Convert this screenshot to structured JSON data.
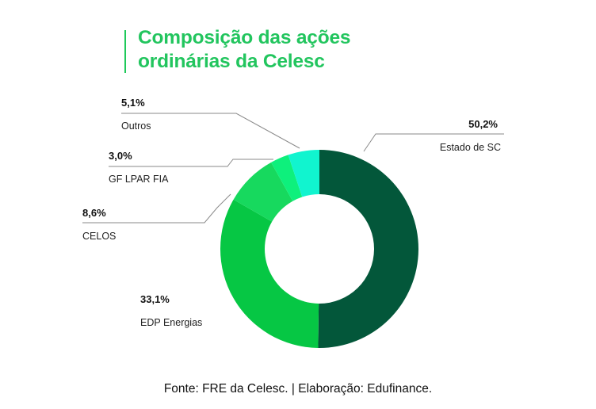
{
  "title": "Composição das ações ordinárias da Celesc",
  "source": "Fonte: FRE da Celesc. | Elaboração: Edufinance.",
  "colors": {
    "title": "#22c55e",
    "accent_bar": "#1fc95a"
  },
  "chart_data": {
    "type": "pie",
    "style": "donut",
    "title": "Composição das ações ordinárias da Celesc",
    "slices": [
      {
        "label": "Estado de SC",
        "value": 50.2,
        "value_label": "50,2%",
        "color": "#03573a"
      },
      {
        "label": "EDP Energias",
        "value": 33.1,
        "value_label": "33,1%",
        "color": "#06c744"
      },
      {
        "label": "CELOS",
        "value": 8.6,
        "value_label": "8,6%",
        "color": "#17d95e"
      },
      {
        "label": "GF LPAR FIA",
        "value": 3.0,
        "value_label": "3,0%",
        "color": "#0ef07c"
      },
      {
        "label": "Outros",
        "value": 5.1,
        "value_label": "5,1%",
        "color": "#11f4cf"
      }
    ],
    "start_angle_deg": 0,
    "direction": "clockwise"
  }
}
